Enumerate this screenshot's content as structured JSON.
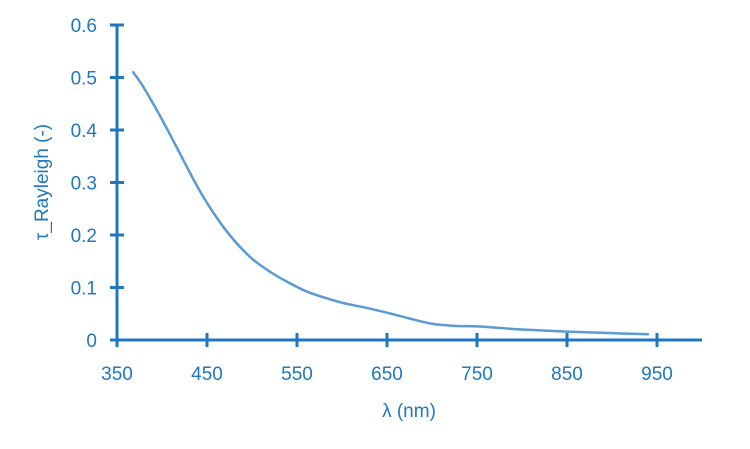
{
  "chart_data": {
    "type": "line",
    "title": "",
    "xlabel": "λ (nm)",
    "ylabel": "τ_Rayleigh (-)",
    "xlim": [
      350,
      1000
    ],
    "ylim": [
      0,
      0.6
    ],
    "x_ticks": [
      350,
      450,
      550,
      650,
      750,
      850,
      950
    ],
    "y_ticks": [
      0,
      0.1,
      0.2,
      0.3,
      0.4,
      0.5,
      0.6
    ],
    "x_tick_labels": [
      "350",
      "450",
      "550",
      "650",
      "750",
      "850",
      "950"
    ],
    "y_tick_labels": [
      "0",
      "0.1",
      "0.2",
      "0.3",
      "0.4",
      "0.5",
      "0.6"
    ],
    "grid": false,
    "legend": "none",
    "colors": {
      "axis": "#1f77c0",
      "line": "#5b9bd5"
    },
    "series": [
      {
        "x": [
          368,
          380,
          400,
          420,
          440,
          460,
          480,
          500,
          520,
          540,
          560,
          580,
          600,
          625,
          650,
          675,
          700,
          725,
          750,
          775,
          800,
          850,
          900,
          940
        ],
        "values": [
          0.51,
          0.48,
          0.42,
          0.355,
          0.29,
          0.235,
          0.19,
          0.155,
          0.13,
          0.11,
          0.093,
          0.081,
          0.071,
          0.062,
          0.052,
          0.041,
          0.031,
          0.027,
          0.026,
          0.023,
          0.02,
          0.016,
          0.013,
          0.011
        ]
      }
    ]
  }
}
